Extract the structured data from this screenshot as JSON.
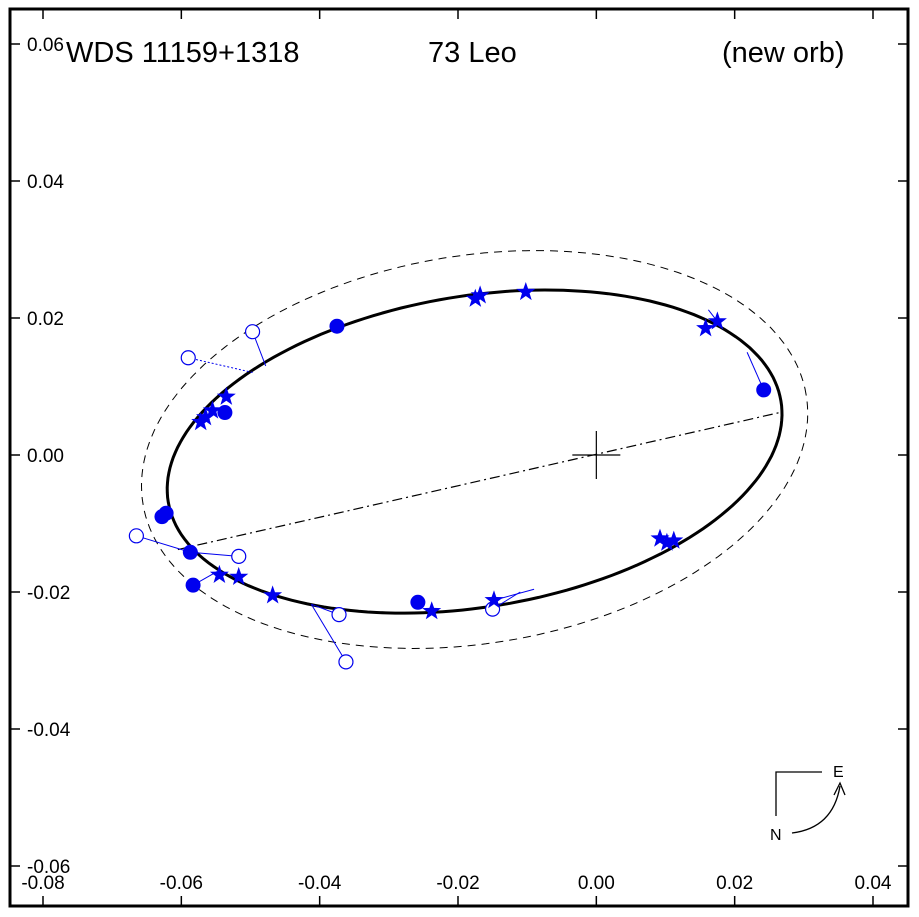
{
  "title": {
    "designation": "WDS 11159+1318",
    "star_name": "73 Leo",
    "note": "(new orb)"
  },
  "compass": {
    "north": "N",
    "east": "E"
  },
  "chart_data": {
    "type": "scatter",
    "xlim": [
      -0.08,
      0.04
    ],
    "ylim": [
      -0.06,
      0.06
    ],
    "x_ticks": [
      -0.08,
      -0.06,
      -0.04,
      -0.02,
      0.0,
      0.02,
      0.04
    ],
    "x_tick_labels": [
      "-0.08",
      "-0.06",
      "-0.04",
      "-0.02",
      "0.00",
      "0.02",
      "0.04"
    ],
    "y_ticks": [
      -0.06,
      -0.04,
      -0.02,
      0.0,
      0.02,
      0.04,
      0.06
    ],
    "y_tick_labels": [
      "-0.06",
      "-0.04",
      "-0.02",
      "0.00",
      "0.02",
      "0.04",
      "0.06"
    ],
    "grid": false,
    "colors": {
      "observations": "#0000ee",
      "orbit": "#000000"
    },
    "new_orbit": {
      "style": "solid",
      "center": [
        -0.0176,
        0.0005
      ],
      "semi_major": 0.0449,
      "semi_minor": 0.0227,
      "rotation_deg": 9.5
    },
    "old_orbit": {
      "style": "dashed",
      "center": [
        -0.0176,
        0.0008
      ],
      "semi_major": 0.0486,
      "semi_minor": 0.0283,
      "rotation_deg": 9.5
    },
    "line_of_nodes": {
      "style": "dash-dot",
      "from": [
        -0.0605,
        -0.0138
      ],
      "to": [
        0.0265,
        0.0062
      ]
    },
    "primary": [
      0.0,
      0.0
    ],
    "stars": [
      [
        0.0175,
        0.0195
      ],
      [
        0.0158,
        0.0185
      ],
      [
        -0.0102,
        0.0238
      ],
      [
        -0.0168,
        0.0233
      ],
      [
        -0.0175,
        0.0228
      ],
      [
        -0.0535,
        0.0085
      ],
      [
        -0.0555,
        0.0065
      ],
      [
        -0.0565,
        0.0055
      ],
      [
        -0.0572,
        0.0048
      ],
      [
        0.0092,
        -0.0122
      ],
      [
        0.0102,
        -0.0128
      ],
      [
        0.0112,
        -0.0125
      ],
      [
        -0.0148,
        -0.0212
      ],
      [
        -0.0238,
        -0.0228
      ],
      [
        -0.0468,
        -0.0205
      ],
      [
        -0.0517,
        -0.0178
      ],
      [
        -0.0545,
        -0.0175
      ]
    ],
    "filled_circles": [
      [
        0.0242,
        0.0095
      ],
      [
        -0.0375,
        0.0188
      ],
      [
        -0.0537,
        0.0062
      ],
      [
        -0.0622,
        -0.0085
      ],
      [
        -0.0628,
        -0.009
      ],
      [
        -0.0587,
        -0.0142
      ],
      [
        -0.0583,
        -0.019
      ],
      [
        -0.0258,
        -0.0215
      ]
    ],
    "open_circles": [
      {
        "point": [
          -0.0497,
          0.018
        ],
        "fit": [
          -0.0478,
          0.013
        ],
        "dotted": false
      },
      {
        "point": [
          -0.059,
          0.0142
        ],
        "fit": [
          -0.0495,
          0.012
        ],
        "dotted": true
      },
      {
        "point": [
          -0.0665,
          -0.0118
        ],
        "fit": [
          -0.0587,
          -0.0142
        ],
        "dotted": false
      },
      {
        "point": [
          -0.0517,
          -0.0148
        ],
        "fit": [
          -0.0587,
          -0.0142
        ],
        "dotted": false
      },
      {
        "point": [
          -0.0372,
          -0.0233
        ],
        "fit": [
          -0.0412,
          -0.0218
        ],
        "dotted": false
      },
      {
        "point": [
          -0.0362,
          -0.0302
        ],
        "fit": [
          -0.0412,
          -0.0218
        ],
        "dotted": false
      },
      {
        "point": [
          -0.015,
          -0.0225
        ],
        "fit": [
          -0.011,
          -0.02
        ],
        "dotted": false
      }
    ],
    "residuals": [
      {
        "from": [
          0.0242,
          0.0095
        ],
        "to": [
          0.0218,
          0.015
        ]
      },
      {
        "from": [
          0.0175,
          0.0195
        ],
        "to": [
          0.0162,
          0.0212
        ]
      },
      {
        "from": [
          -0.0583,
          -0.019
        ],
        "to": [
          -0.0548,
          -0.017
        ]
      },
      {
        "from": [
          -0.0148,
          -0.0212
        ],
        "to": [
          -0.009,
          -0.0196
        ]
      }
    ]
  }
}
